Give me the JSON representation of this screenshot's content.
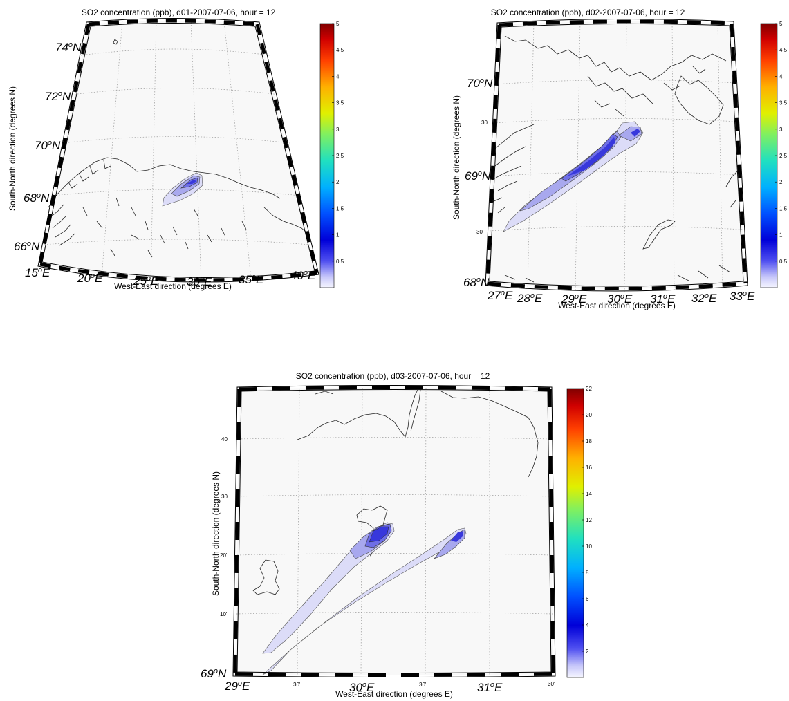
{
  "colors": {
    "map_background": "#f8f8f8",
    "plume_levels": [
      "#dcdcf8",
      "#a8a8ee",
      "#6e6ee6",
      "#3838dc",
      "#1a1acc"
    ],
    "colorbar_stops": [
      "#f5f5ff",
      "#b8b8f8",
      "#3c3cf0",
      "#0000d0",
      "#0060ff",
      "#00c8f0",
      "#40e8a0",
      "#a0f040",
      "#f0f000",
      "#ffa000",
      "#ff4000",
      "#e00000",
      "#800000"
    ]
  },
  "panels": [
    {
      "id": "d01",
      "title": "SO2 concentration (ppb), d01-2007-07-06, hour = 12",
      "xlabel": "West-East direction (degrees E)",
      "ylabel": "South-North direction (degrees N)",
      "lat_labels": [
        "74",
        "72",
        "70",
        "68",
        "66"
      ],
      "lat_suffix": "N",
      "lon_labels": [
        "15",
        "20",
        "25",
        "30",
        "35",
        "40"
      ],
      "lon_suffix": "E",
      "degree_symbol": "o",
      "colorbar": {
        "ticks": [
          "5",
          "4.5",
          "4",
          "3.5",
          "3",
          "2.5",
          "2",
          "1.5",
          "1",
          "0.5"
        ],
        "range": [
          0,
          5
        ]
      }
    },
    {
      "id": "d02",
      "title": "SO2 concentration (ppb), d02-2007-07-06, hour = 12",
      "xlabel": "West-East direction (degrees E)",
      "ylabel": "South-North direction (degrees N)",
      "lat_labels": [
        "70",
        "69",
        "68"
      ],
      "lat_minute_labels": [
        "30'",
        "30'"
      ],
      "lat_suffix": "N",
      "lon_labels": [
        "27",
        "28",
        "29",
        "30",
        "31",
        "32",
        "33"
      ],
      "lon_suffix": "E",
      "degree_symbol": "o",
      "colorbar": {
        "ticks": [
          "5",
          "4.5",
          "4",
          "3.5",
          "3",
          "2.5",
          "2",
          "1.5",
          "1",
          "0.5"
        ],
        "range": [
          0,
          5
        ]
      }
    },
    {
      "id": "d03",
      "title": "SO2 concentration (ppb), d03-2007-07-06, hour = 12",
      "xlabel": "West-East direction (degrees E)",
      "ylabel": "South-North direction (degrees N)",
      "lat_labels": [
        "69"
      ],
      "lat_minute_labels": [
        "40'",
        "30'",
        "20'",
        "10'"
      ],
      "lat_suffix": "N",
      "lon_labels": [
        "29",
        "30",
        "31"
      ],
      "lon_minute_labels": [
        "30'",
        "30'",
        "30'"
      ],
      "lon_suffix": "E",
      "degree_symbol": "o",
      "colorbar": {
        "ticks": [
          "22",
          "20",
          "18",
          "16",
          "14",
          "12",
          "10",
          "8",
          "6",
          "4",
          "2"
        ],
        "range": [
          0,
          22
        ]
      }
    }
  ],
  "chart_data": [
    {
      "type": "heatmap",
      "title": "SO2 concentration (ppb), d01-2007-07-06, hour = 12",
      "xlabel": "West-East direction (degrees E)",
      "ylabel": "South-North direction (degrees N)",
      "x_ticks": [
        15,
        20,
        25,
        30,
        35,
        40
      ],
      "y_ticks": [
        66,
        68,
        70,
        72,
        74
      ],
      "colorbar_range": [
        0,
        5
      ],
      "colorbar_ticks": [
        0.5,
        1,
        1.5,
        2,
        2.5,
        3,
        3.5,
        4,
        4.5,
        5
      ],
      "plume_center": {
        "lon": 28.5,
        "lat": 68.7
      },
      "grid": true
    },
    {
      "type": "heatmap",
      "title": "SO2 concentration (ppb), d02-2007-07-06, hour = 12",
      "xlabel": "West-East direction (degrees E)",
      "ylabel": "South-North direction (degrees N)",
      "x_ticks": [
        27,
        28,
        29,
        30,
        31,
        32,
        33
      ],
      "y_ticks": [
        68,
        68.5,
        69,
        69.5,
        70
      ],
      "colorbar_range": [
        0,
        5
      ],
      "colorbar_ticks": [
        0.5,
        1,
        1.5,
        2,
        2.5,
        3,
        3.5,
        4,
        4.5,
        5
      ],
      "plume_sources": [
        {
          "lon": 30.2,
          "lat": 69.4
        },
        {
          "lon": 30.8,
          "lat": 69.35
        }
      ],
      "grid": true
    },
    {
      "type": "heatmap",
      "title": "SO2 concentration (ppb), d03-2007-07-06, hour = 12",
      "xlabel": "West-East direction (degrees E)",
      "ylabel": "South-North direction (degrees N)",
      "x_ticks": [
        29,
        29.5,
        30,
        30.5,
        31,
        31.5
      ],
      "y_ticks": [
        69,
        69.1667,
        69.3333,
        69.5,
        69.6667
      ],
      "colorbar_range": [
        0,
        22
      ],
      "colorbar_ticks": [
        2,
        4,
        6,
        8,
        10,
        12,
        14,
        16,
        18,
        20,
        22
      ],
      "plume_sources": [
        {
          "lon": 30.42,
          "lat": 69.41
        },
        {
          "lon": 30.62,
          "lat": 69.4
        }
      ],
      "grid": true
    }
  ]
}
